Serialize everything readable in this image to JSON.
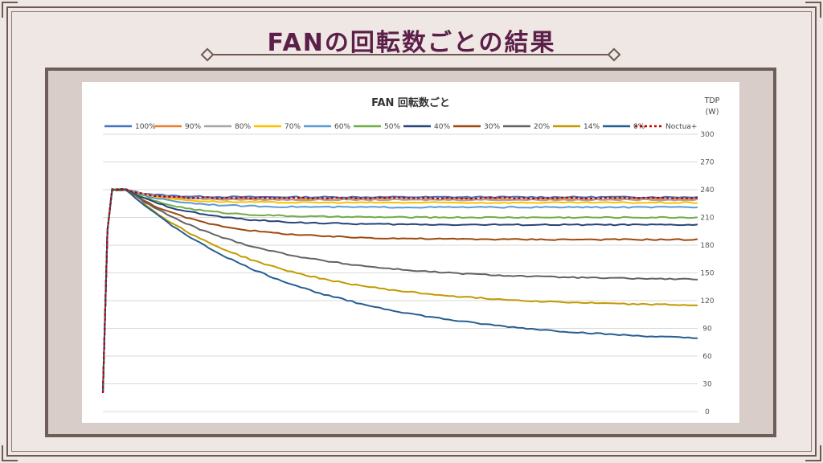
{
  "slide": {
    "title": "FANの回転数ごとの結果"
  },
  "chart_data": {
    "type": "line",
    "title": "FAN 回転数ごと",
    "ylabel": "TDP\n(W)",
    "ylabel_lines": [
      "TDP",
      "(W)"
    ],
    "yaxis_side": "right",
    "ylim": [
      0,
      300
    ],
    "yticks": [
      0,
      30,
      60,
      90,
      120,
      150,
      180,
      210,
      240,
      270,
      300
    ],
    "grid": true,
    "legend_position": "top",
    "x_points": 130,
    "series": [
      {
        "name": "100%",
        "color": "#4472c4",
        "dash": "",
        "plateau": 232,
        "tau": 6,
        "drift": 0
      },
      {
        "name": "90%",
        "color": "#ed7d31",
        "dash": "",
        "plateau": 230,
        "tau": 6,
        "drift": 0
      },
      {
        "name": "80%",
        "color": "#a5a5a5",
        "dash": "",
        "plateau": 229,
        "tau": 7,
        "drift": 0
      },
      {
        "name": "70%",
        "color": "#ffc000",
        "dash": "",
        "plateau": 226,
        "tau": 8,
        "drift": 0
      },
      {
        "name": "60%",
        "color": "#5b9bd5",
        "dash": "",
        "plateau": 221,
        "tau": 10,
        "drift": 0
      },
      {
        "name": "50%",
        "color": "#70ad47",
        "dash": "",
        "plateau": 210,
        "tau": 12,
        "drift": 0
      },
      {
        "name": "40%",
        "color": "#264478",
        "dash": "",
        "plateau": 202,
        "tau": 14,
        "drift": 0
      },
      {
        "name": "30%",
        "color": "#9e480e",
        "dash": "",
        "plateau": 186,
        "tau": 16,
        "drift": 0
      },
      {
        "name": "20%",
        "color": "#636363",
        "dash": "",
        "plateau": 142,
        "tau": 28,
        "drift": 0
      },
      {
        "name": "14%",
        "color": "#c29a00",
        "dash": "",
        "plateau": 113,
        "tau": 30,
        "drift": 0
      },
      {
        "name": "0%",
        "color": "#255e91",
        "dash": "",
        "plateau": 73,
        "tau": 38,
        "drift": 0
      },
      {
        "name": "Noctua+",
        "color": "#c00000",
        "dash": "3,3",
        "plateau": 231,
        "tau": 5,
        "drift": 0
      }
    ]
  }
}
